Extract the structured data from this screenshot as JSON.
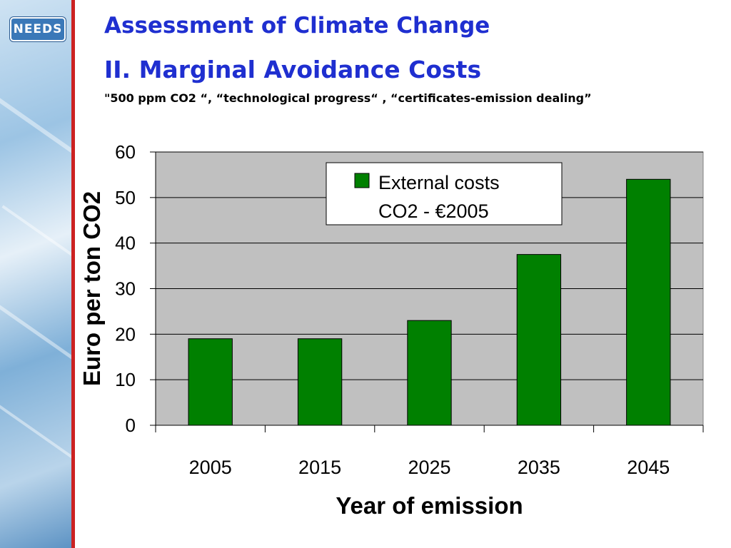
{
  "logo_text": "NEEDS",
  "slide": {
    "title": "Assessment of Climate Change",
    "subtitle": "II. Marginal Avoidance Costs",
    "scenario": "\"500 ppm CO2 “, “technological progress“ , “certificates-emission dealing”"
  },
  "colors": {
    "title": "#1f2fd0",
    "bar": "#008000",
    "plot_background": "#c0c0c0",
    "accent_rule": "#cc2222"
  },
  "chart_data": {
    "type": "bar",
    "categories": [
      "2005",
      "2015",
      "2025",
      "2035",
      "2045"
    ],
    "series": [
      {
        "name": "External costs CO2 - €2005",
        "values": [
          19,
          19,
          23,
          37.5,
          54
        ]
      }
    ],
    "legend_lines": [
      "External costs",
      "CO2 - €2005"
    ],
    "xlabel": "Year of emission",
    "ylabel": "Euro per ton CO2",
    "ylim": [
      0,
      60
    ],
    "yticks": [
      0,
      10,
      20,
      30,
      40,
      50,
      60
    ],
    "grid": true,
    "legend_position": "top-right"
  }
}
